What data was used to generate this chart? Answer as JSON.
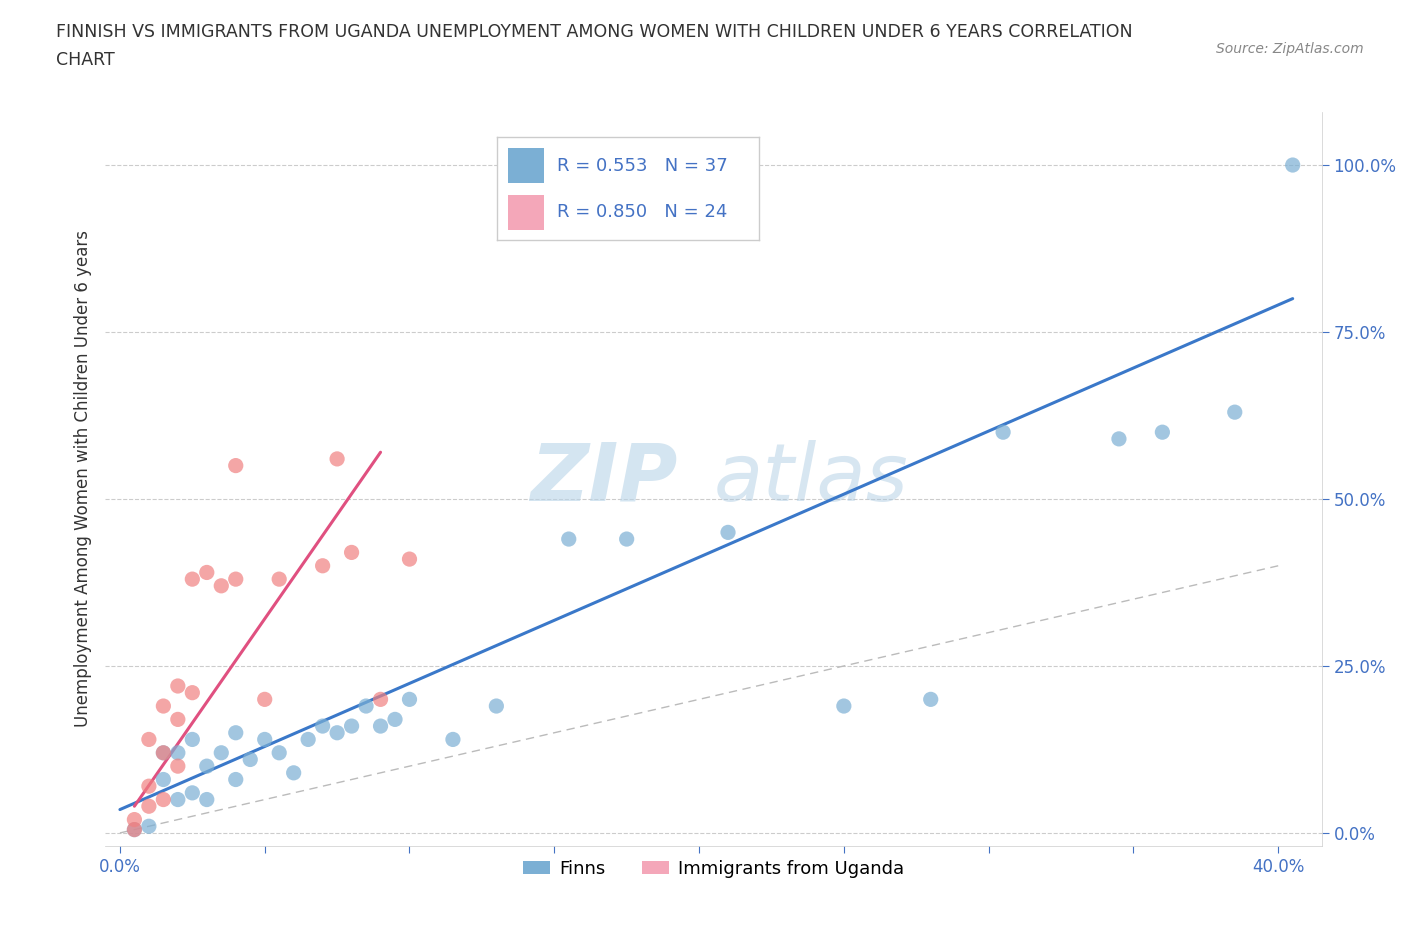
{
  "title_line1": "FINNISH VS IMMIGRANTS FROM UGANDA UNEMPLOYMENT AMONG WOMEN WITH CHILDREN UNDER 6 YEARS CORRELATION",
  "title_line2": "CHART",
  "source": "Source: ZipAtlas.com",
  "ylabel": "Unemployment Among Women with Children Under 6 years",
  "background_color": "#ffffff",
  "finn_color": "#7bafd4",
  "uganda_color": "#f08080",
  "finn_R": 0.553,
  "finn_N": 37,
  "uganda_R": 0.85,
  "uganda_N": 24,
  "watermark_ZIP": "ZIP",
  "watermark_atlas": "atlas",
  "xmin": -0.005,
  "xmax": 0.415,
  "ymin": -0.02,
  "ymax": 1.08,
  "xticks": [
    0.0,
    0.05,
    0.1,
    0.15,
    0.2,
    0.25,
    0.3,
    0.35,
    0.4
  ],
  "yticks": [
    0.0,
    0.25,
    0.5,
    0.75,
    1.0
  ],
  "finn_scatter_x": [
    0.005,
    0.01,
    0.015,
    0.015,
    0.02,
    0.02,
    0.025,
    0.025,
    0.03,
    0.03,
    0.035,
    0.04,
    0.04,
    0.045,
    0.05,
    0.055,
    0.06,
    0.065,
    0.07,
    0.075,
    0.08,
    0.085,
    0.09,
    0.095,
    0.1,
    0.115,
    0.13,
    0.155,
    0.175,
    0.21,
    0.25,
    0.28,
    0.305,
    0.345,
    0.36,
    0.385,
    0.405
  ],
  "finn_scatter_y": [
    0.005,
    0.01,
    0.08,
    0.12,
    0.05,
    0.12,
    0.06,
    0.14,
    0.05,
    0.1,
    0.12,
    0.08,
    0.15,
    0.11,
    0.14,
    0.12,
    0.09,
    0.14,
    0.16,
    0.15,
    0.16,
    0.19,
    0.16,
    0.17,
    0.2,
    0.14,
    0.19,
    0.44,
    0.44,
    0.45,
    0.19,
    0.2,
    0.6,
    0.59,
    0.6,
    0.63,
    1.0
  ],
  "uganda_scatter_x": [
    0.005,
    0.005,
    0.01,
    0.01,
    0.01,
    0.015,
    0.015,
    0.015,
    0.02,
    0.02,
    0.02,
    0.025,
    0.025,
    0.03,
    0.035,
    0.04,
    0.04,
    0.05,
    0.055,
    0.07,
    0.075,
    0.08,
    0.09,
    0.1
  ],
  "uganda_scatter_y": [
    0.005,
    0.02,
    0.04,
    0.07,
    0.14,
    0.05,
    0.12,
    0.19,
    0.1,
    0.17,
    0.22,
    0.21,
    0.38,
    0.39,
    0.37,
    0.38,
    0.55,
    0.2,
    0.38,
    0.4,
    0.56,
    0.42,
    0.2,
    0.41
  ],
  "finn_line_x": [
    0.0,
    0.405
  ],
  "finn_line_y": [
    0.035,
    0.8
  ],
  "uganda_line_x": [
    0.005,
    0.09
  ],
  "uganda_line_y": [
    0.04,
    0.57
  ],
  "diag_line_x": [
    0.0,
    0.4
  ],
  "diag_line_y": [
    0.0,
    0.4
  ],
  "legend_labels": [
    "Finns",
    "Immigrants from Uganda"
  ],
  "tick_color": "#4472c4",
  "text_color": "#333333"
}
